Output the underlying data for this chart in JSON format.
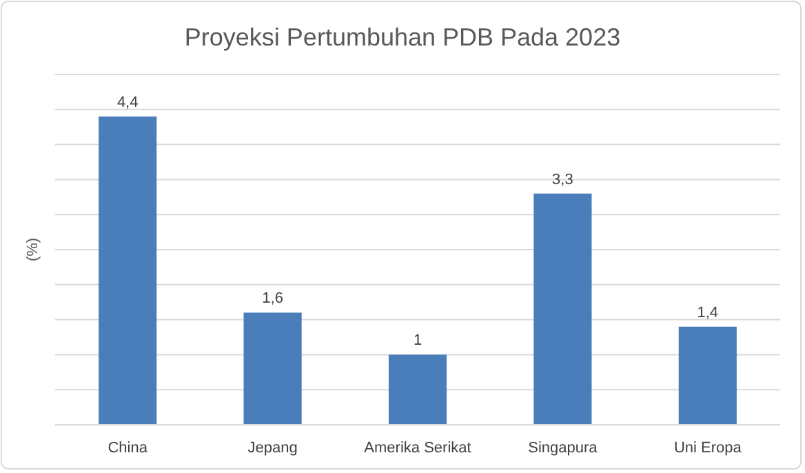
{
  "chart_data": {
    "type": "bar",
    "title": "Proyeksi Pertumbuhan PDB Pada 2023",
    "ylabel": "(%)",
    "categories": [
      "China",
      "Jepang",
      "Amerika Serikat",
      "Singapura",
      "Uni Eropa"
    ],
    "values": [
      4.4,
      1.6,
      1,
      3.3,
      1.4
    ],
    "value_labels": [
      "4,4",
      "1,6",
      "1",
      "3,3",
      "1,4"
    ],
    "color": "#4a7ebb",
    "ylim": [
      0,
      5
    ],
    "yticks": [
      {
        "value": 0,
        "label": null
      },
      {
        "value": 0.5,
        "label": null
      },
      {
        "value": 1,
        "label": null
      },
      {
        "value": 1.5,
        "label": null
      },
      {
        "value": 2,
        "label": null
      },
      {
        "value": 2.5,
        "label": null
      },
      {
        "value": 3,
        "label": null
      },
      {
        "value": 3.5,
        "label": null
      },
      {
        "value": 4,
        "label": null
      },
      {
        "value": 4.5,
        "label": null
      },
      {
        "value": 5,
        "label": null
      }
    ],
    "grid": "y",
    "tick_labels": "x"
  }
}
